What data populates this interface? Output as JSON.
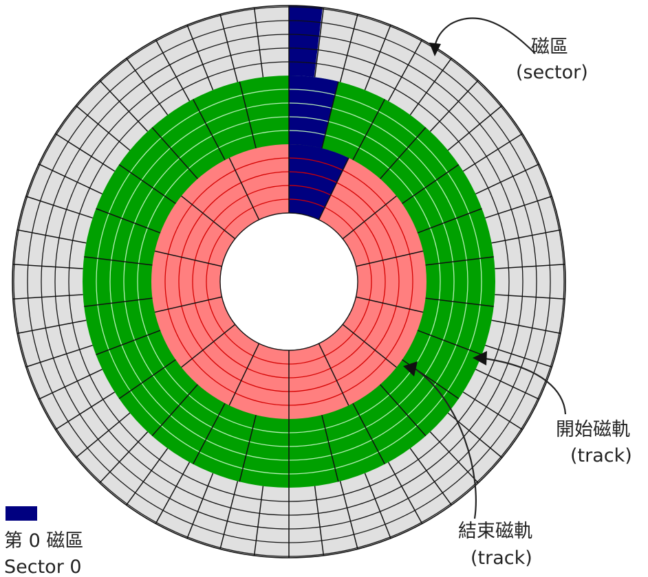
{
  "labels": {
    "sector": {
      "line1": "磁區",
      "line2": "(sector)"
    },
    "start_track": {
      "line1": "開始磁軌",
      "line2": "(track)"
    },
    "end_track": {
      "line1": "結束磁軌",
      "line2": "(track)"
    },
    "legend": {
      "line1": "第 0 磁區",
      "line2": "Sector 0"
    }
  },
  "colors": {
    "outer_zone": "#e0e0e0",
    "middle_zone": "#00a000",
    "inner_zone": "#ff7f7f",
    "sector_zero": "#000080",
    "outline": "#111111",
    "middle_track_lines": "#b8f0b8",
    "inner_track_lines": "#d40000"
  },
  "icons": [
    "arrow-sector-icon",
    "arrow-start-track-icon",
    "arrow-end-track-icon"
  ]
}
